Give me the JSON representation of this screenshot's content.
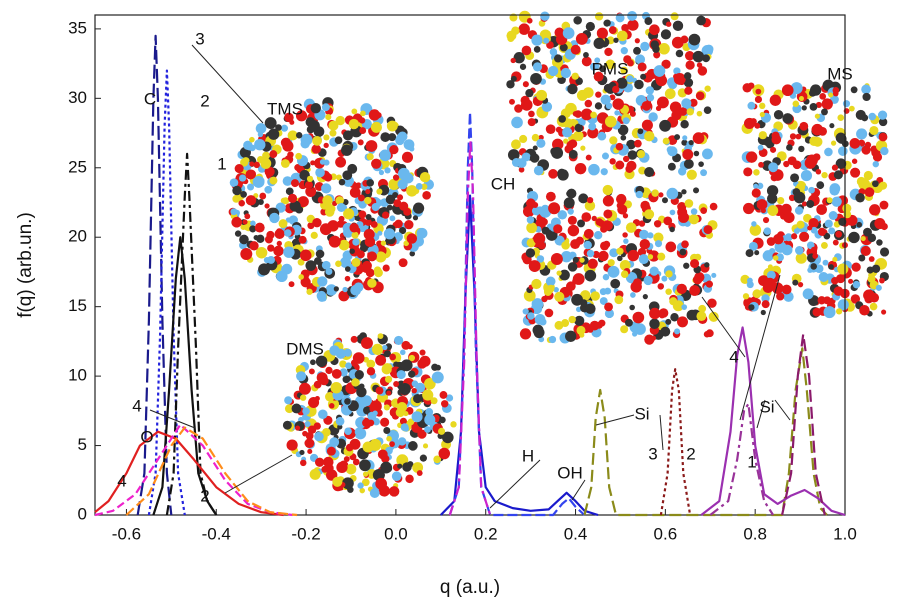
{
  "chart_data": {
    "type": "line",
    "x_label": "q  (a.u.)",
    "y_label": "f(q)  (arb.un.)",
    "xlim": [
      -0.67,
      1.0
    ],
    "ylim": [
      0,
      36
    ],
    "xticks": [
      -0.6,
      -0.4,
      -0.2,
      {
        "value": 0,
        "label": "0.0"
      },
      0.2,
      0.4,
      0.6,
      0.8,
      {
        "value": 1,
        "label": "1.0"
      }
    ],
    "yticks": [
      0,
      5,
      10,
      15,
      20,
      25,
      30,
      35
    ],
    "annotations": [
      "C",
      "3",
      "2",
      "1",
      "TMS",
      "CH",
      "PMS",
      "MS",
      "DMS",
      "4",
      "O",
      "4",
      "2",
      "H",
      "OH",
      "Si",
      "3",
      "2",
      "4",
      "Si",
      "1"
    ],
    "series": [
      {
        "color": "#1a1a8c",
        "dash": "14 5",
        "x": [
          -0.575,
          -0.56,
          -0.55,
          -0.54,
          -0.535,
          -0.53,
          -0.52,
          -0.51,
          -0.5
        ],
        "values": [
          0,
          3,
          14,
          30,
          34.5,
          30,
          14,
          3,
          0
        ]
      },
      {
        "color": "#2222dd",
        "dash": "3 3",
        "x": [
          -0.55,
          -0.535,
          -0.525,
          -0.515,
          -0.51,
          -0.505,
          -0.495,
          -0.485,
          -0.47
        ],
        "values": [
          0,
          3,
          13,
          28,
          32,
          28,
          13,
          3,
          0
        ]
      },
      {
        "color": "#111111",
        "dash": "10 4 3 4",
        "x": [
          -0.51,
          -0.495,
          -0.485,
          -0.47,
          -0.465,
          -0.46,
          -0.445,
          -0.435,
          -0.42,
          -0.41,
          -0.4
        ],
        "values": [
          0,
          3,
          12,
          23,
          26,
          23,
          12,
          3,
          1,
          0.5,
          0
        ]
      },
      {
        "color": "#111111",
        "dash": "none",
        "x": [
          -0.54,
          -0.52,
          -0.505,
          -0.49,
          -0.48,
          -0.47,
          -0.455,
          -0.44,
          -0.42,
          -0.4
        ],
        "values": [
          0,
          2,
          9,
          17,
          20,
          17,
          9,
          3,
          1,
          0
        ]
      },
      {
        "color": "#e02020",
        "dash": "none",
        "x": [
          -0.67,
          -0.64,
          -0.6,
          -0.57,
          -0.53,
          -0.49,
          -0.45,
          -0.4,
          -0.35,
          -0.3,
          -0.25
        ],
        "values": [
          0.2,
          1,
          3,
          5,
          6,
          5.5,
          4,
          2,
          0.8,
          0.2,
          0
        ]
      },
      {
        "color": "#ee22cc",
        "dash": "8 4",
        "x": [
          -0.67,
          -0.63,
          -0.58,
          -0.53,
          -0.48,
          -0.43,
          -0.38,
          -0.33,
          -0.28,
          -0.23
        ],
        "values": [
          0,
          0.3,
          1.5,
          4,
          6.5,
          5,
          2.5,
          0.8,
          0.2,
          0
        ]
      },
      {
        "color": "#ff8c1a",
        "dash": "10 4",
        "x": [
          -0.6,
          -0.55,
          -0.5,
          -0.47,
          -0.43,
          -0.38,
          -0.33,
          -0.28,
          -0.22
        ],
        "values": [
          0,
          1.5,
          5,
          6.3,
          5.5,
          3,
          1,
          0.2,
          0
        ]
      },
      {
        "color": "#1a1acc",
        "dash": "none",
        "x": [
          0.1,
          0.13,
          0.145,
          0.155,
          0.165,
          0.175,
          0.185,
          0.2,
          0.22,
          0.26,
          0.3,
          0.34,
          0.36,
          0.38,
          0.4,
          0.42,
          0.45
        ],
        "values": [
          0,
          1,
          6,
          16,
          23,
          16,
          6,
          2,
          1,
          0.5,
          0.3,
          0.4,
          1.0,
          1.6,
          1.0,
          0.3,
          0
        ]
      },
      {
        "color": "#3344ee",
        "dash": "10 4",
        "x": [
          0.12,
          0.14,
          0.152,
          0.16,
          0.165,
          0.17,
          0.178,
          0.19,
          0.21,
          0.35,
          0.37,
          0.385,
          0.4,
          0.42
        ],
        "values": [
          0,
          2,
          12,
          25,
          29,
          25,
          12,
          2,
          0,
          0,
          0.8,
          1.2,
          0.6,
          0
        ]
      },
      {
        "color": "#cc22cc",
        "dash": "10 4 3 4",
        "x": [
          0.12,
          0.14,
          0.152,
          0.16,
          0.166,
          0.172,
          0.18,
          0.19,
          0.21
        ],
        "values": [
          0,
          2,
          11,
          23,
          27,
          23,
          11,
          2,
          0
        ]
      },
      {
        "color": "#8b8b1a",
        "dash": "12 5",
        "x": [
          0.42,
          0.435,
          0.445,
          0.455,
          0.465,
          0.475,
          0.49,
          0.86,
          0.875,
          0.89,
          0.905,
          0.915,
          0.93,
          0.945,
          0.96
        ],
        "values": [
          0,
          2,
          7,
          9,
          7,
          2,
          0,
          0,
          3,
          9,
          12,
          9,
          3,
          0.5,
          0
        ]
      },
      {
        "color": "#8b1a1a",
        "dash": "3 3",
        "x": [
          0.59,
          0.605,
          0.615,
          0.622,
          0.63,
          0.64,
          0.655
        ],
        "values": [
          0,
          3,
          9,
          10.5,
          9,
          3,
          0
        ]
      },
      {
        "color": "#9b30b0",
        "dash": "none",
        "x": [
          0.68,
          0.72,
          0.745,
          0.76,
          0.772,
          0.785,
          0.8,
          0.82,
          0.85,
          0.88,
          0.91,
          0.94,
          0.97,
          1.0
        ],
        "values": [
          0,
          1,
          6,
          11.5,
          13.5,
          11,
          5,
          1.5,
          0.8,
          1.4,
          1.8,
          1.2,
          0.3,
          0
        ]
      },
      {
        "color": "#993399",
        "dash": "10 4 3 4",
        "x": [
          0.7,
          0.74,
          0.76,
          0.775,
          0.785,
          0.8,
          0.82,
          0.84
        ],
        "values": [
          0,
          1,
          4,
          7.5,
          8,
          4,
          1,
          0
        ]
      },
      {
        "color": "#8b1a6b",
        "dash": "12 5",
        "x": [
          0.86,
          0.88,
          0.895,
          0.907,
          0.92,
          0.935,
          0.955
        ],
        "values": [
          0,
          3,
          10,
          13,
          10,
          3,
          0
        ]
      }
    ]
  }
}
